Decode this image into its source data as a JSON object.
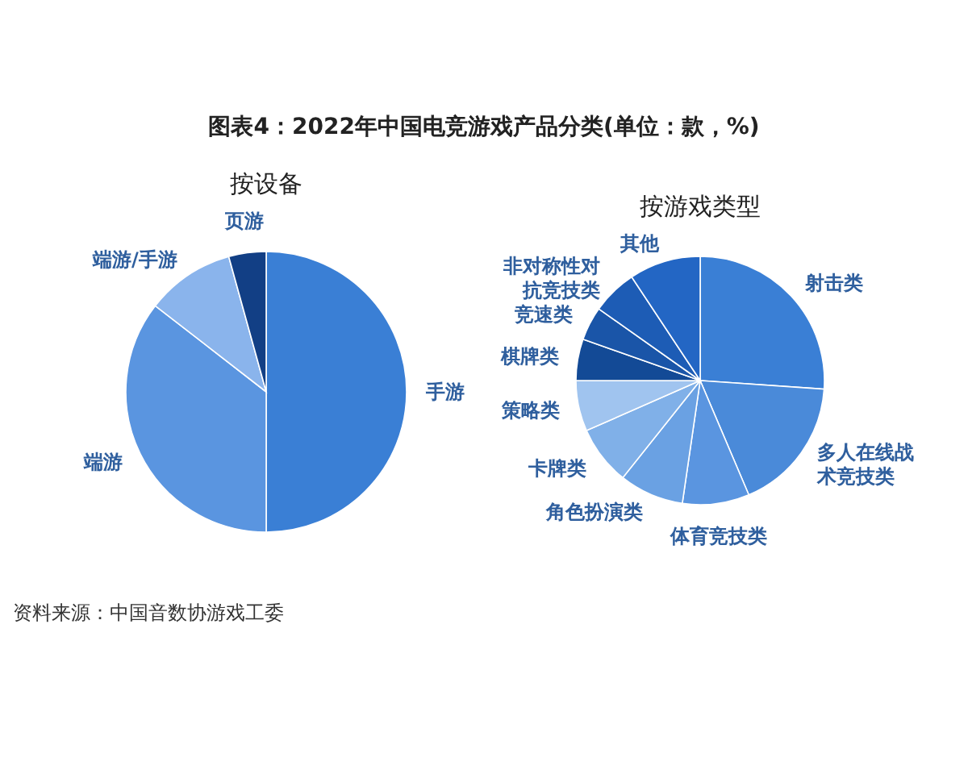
{
  "chart_data": [
    {
      "type": "pie",
      "title": "图表4：2022年中国电竞游戏产品分类(单位：款，%)",
      "subtitle": "按设备",
      "categories": [
        "手游",
        "端游",
        "端游/手游",
        "页游"
      ],
      "values": [
        50,
        35.5,
        10.2,
        4.3
      ],
      "colors": [
        "#3a7fd5",
        "#5a95e0",
        "#8ab4ec",
        "#123f85"
      ],
      "annotations": [
        "资料来源：中国音数协游戏工委"
      ]
    },
    {
      "type": "pie",
      "subtitle": "按游戏类型",
      "categories": [
        "射击类",
        "多人在线战术竞技类",
        "体育竞技类",
        "角色扮演类",
        "卡牌类",
        "策略类",
        "棋牌类",
        "竞速类",
        "非对称性对抗竞技类",
        "其他"
      ],
      "values": [
        26.1,
        17.5,
        8.7,
        8.4,
        7.7,
        6.6,
        5.4,
        4.4,
        5.9,
        9.3
      ],
      "colors": [
        "#3a7fd5",
        "#4a8ad9",
        "#5a95e0",
        "#6aa1e3",
        "#80b0e8",
        "#a0c4ef",
        "#134a96",
        "#1a55a8",
        "#1d5cb5",
        "#2366c4"
      ]
    }
  ]
}
